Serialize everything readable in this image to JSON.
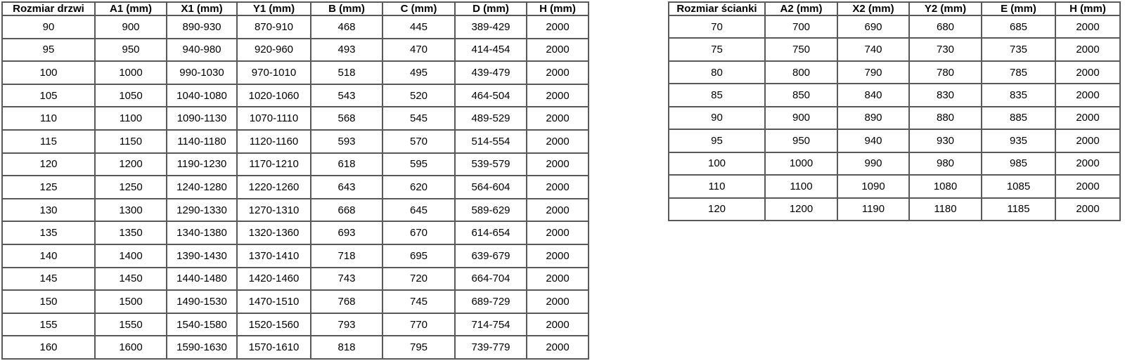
{
  "style": {
    "background_color": "#ffffff",
    "border_color": "#595959",
    "text_color": "#000000"
  },
  "tables": [
    {
      "name": "door-dimensions-table",
      "headers": [
        "Rozmiar drzwi",
        "A1 (mm)",
        "X1 (mm)",
        "Y1 (mm)",
        "B (mm)",
        "C (mm)",
        "D (mm)",
        "H (mm)"
      ],
      "rows": [
        [
          "90",
          "900",
          "890-930",
          "870-910",
          "468",
          "445",
          "389-429",
          "2000"
        ],
        [
          "95",
          "950",
          "940-980",
          "920-960",
          "493",
          "470",
          "414-454",
          "2000"
        ],
        [
          "100",
          "1000",
          "990-1030",
          "970-1010",
          "518",
          "495",
          "439-479",
          "2000"
        ],
        [
          "105",
          "1050",
          "1040-1080",
          "1020-1060",
          "543",
          "520",
          "464-504",
          "2000"
        ],
        [
          "110",
          "1100",
          "1090-1130",
          "1070-1110",
          "568",
          "545",
          "489-529",
          "2000"
        ],
        [
          "115",
          "1150",
          "1140-1180",
          "1120-1160",
          "593",
          "570",
          "514-554",
          "2000"
        ],
        [
          "120",
          "1200",
          "1190-1230",
          "1170-1210",
          "618",
          "595",
          "539-579",
          "2000"
        ],
        [
          "125",
          "1250",
          "1240-1280",
          "1220-1260",
          "643",
          "620",
          "564-604",
          "2000"
        ],
        [
          "130",
          "1300",
          "1290-1330",
          "1270-1310",
          "668",
          "645",
          "589-629",
          "2000"
        ],
        [
          "135",
          "1350",
          "1340-1380",
          "1320-1360",
          "693",
          "670",
          "614-654",
          "2000"
        ],
        [
          "140",
          "1400",
          "1390-1430",
          "1370-1410",
          "718",
          "695",
          "639-679",
          "2000"
        ],
        [
          "145",
          "1450",
          "1440-1480",
          "1420-1460",
          "743",
          "720",
          "664-704",
          "2000"
        ],
        [
          "150",
          "1500",
          "1490-1530",
          "1470-1510",
          "768",
          "745",
          "689-729",
          "2000"
        ],
        [
          "155",
          "1550",
          "1540-1580",
          "1520-1560",
          "793",
          "770",
          "714-754",
          "2000"
        ],
        [
          "160",
          "1600",
          "1590-1630",
          "1570-1610",
          "818",
          "795",
          "739-779",
          "2000"
        ]
      ]
    },
    {
      "name": "wall-dimensions-table",
      "headers": [
        "Rozmiar ścianki",
        "A2 (mm)",
        "X2 (mm)",
        "Y2 (mm)",
        "E (mm)",
        "H (mm)"
      ],
      "rows": [
        [
          "70",
          "700",
          "690",
          "680",
          "685",
          "2000"
        ],
        [
          "75",
          "750",
          "740",
          "730",
          "735",
          "2000"
        ],
        [
          "80",
          "800",
          "790",
          "780",
          "785",
          "2000"
        ],
        [
          "85",
          "850",
          "840",
          "830",
          "835",
          "2000"
        ],
        [
          "90",
          "900",
          "890",
          "880",
          "885",
          "2000"
        ],
        [
          "95",
          "950",
          "940",
          "930",
          "935",
          "2000"
        ],
        [
          "100",
          "1000",
          "990",
          "980",
          "985",
          "2000"
        ],
        [
          "110",
          "1100",
          "1090",
          "1080",
          "1085",
          "2000"
        ],
        [
          "120",
          "1200",
          "1190",
          "1180",
          "1185",
          "2000"
        ]
      ]
    }
  ]
}
